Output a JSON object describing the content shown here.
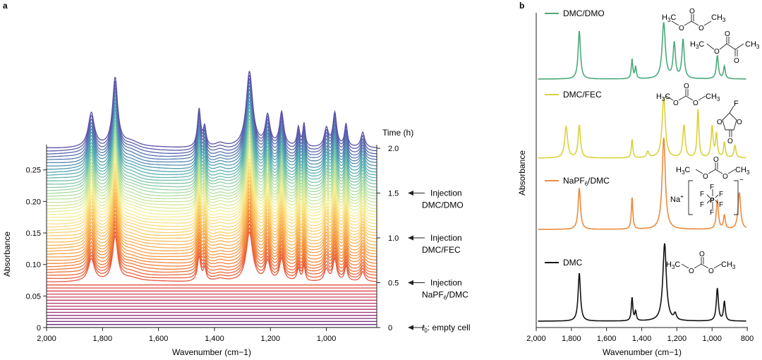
{
  "chart_data": [
    {
      "panel": "a",
      "type": "line",
      "title": "",
      "xlabel": "Wavenumber (cm−1)",
      "ylabel": "Absorbance",
      "xlim": [
        2000,
        820
      ],
      "ylim": [
        0,
        0.3
      ],
      "xticks": [
        2000,
        1800,
        1600,
        1400,
        1200,
        1000
      ],
      "xtick_labels": [
        "2,000",
        "1,800",
        "1,600",
        "1,400",
        "1,200",
        "1,000"
      ],
      "yticks": [
        0,
        0.05,
        0.1,
        0.15,
        0.2,
        0.25
      ],
      "ytick_labels": [
        "0",
        "0.05",
        "0.10",
        "0.15",
        "0.20",
        "0.25"
      ],
      "right_axis": {
        "title": "Time (h)",
        "range": [
          0,
          2.0
        ],
        "ticks": [
          0,
          0.5,
          1.0,
          1.5,
          2.0
        ],
        "tick_labels": [
          "0",
          "0.5",
          "1.0",
          "1.5",
          "2.0"
        ]
      },
      "series_count": 60,
      "time_range_h": [
        0,
        2.0
      ],
      "colormap": "spectral (purple at t0 → red → orange → yellow → green → blue-violet at 2.0 h)",
      "stages": [
        {
          "from_h": 0,
          "to_h": 0.5,
          "sample": "empty cell"
        },
        {
          "from_h": 0.5,
          "to_h": 1.0,
          "sample": "NaPF6/DMC"
        },
        {
          "from_h": 1.0,
          "to_h": 1.5,
          "sample": "DMC/FEC"
        },
        {
          "from_h": 1.5,
          "to_h": 2.0,
          "sample": "DMC/DMO"
        }
      ],
      "annotations": [
        {
          "time_h": 2.0,
          "line1": "",
          "line2": ""
        },
        {
          "time_h": 1.5,
          "line1": "Injection",
          "line2": "DMC/DMO"
        },
        {
          "time_h": 1.0,
          "line1": "Injection",
          "line2": "DMC/FEC"
        },
        {
          "time_h": 0.5,
          "line1": "Injection",
          "line2": "NaPF",
          "line2_sub": "6",
          "line2_tail": "/DMC"
        },
        {
          "time_h": 0,
          "line1": "",
          "line2": "t",
          "line2_sub": "0",
          "line2_tail": ": empty cell"
        }
      ],
      "peaks_cm1": [
        1840,
        1755,
        1455,
        1435,
        1275,
        1210,
        1160,
        1100,
        1080,
        1000,
        970,
        930,
        870
      ]
    },
    {
      "panel": "b",
      "type": "line",
      "xlabel": "Wavenumber (cm−1)",
      "ylabel": "Absorbance",
      "xlim": [
        2000,
        800
      ],
      "xticks": [
        2000,
        1800,
        1600,
        1400,
        1200,
        1000,
        800
      ],
      "xtick_labels": [
        "2,000",
        "1,800",
        "1,600",
        "1,400",
        "1,200",
        "1,000",
        "800"
      ],
      "series": [
        {
          "name": "DMC/DMO",
          "color": "#4aaa7a",
          "peaks": [
            [
              1755,
              0.62
            ],
            [
              1455,
              0.25
            ],
            [
              1435,
              0.15
            ],
            [
              1275,
              0.72
            ],
            [
              1215,
              0.45
            ],
            [
              1165,
              0.5
            ],
            [
              970,
              0.3
            ],
            [
              930,
              0.16
            ]
          ]
        },
        {
          "name": "DMC/FEC",
          "color": "#d9d23a",
          "peaks": [
            [
              1830,
              0.4
            ],
            [
              1755,
              0.42
            ],
            [
              1455,
              0.24
            ],
            [
              1365,
              0.08
            ],
            [
              1275,
              0.78
            ],
            [
              1160,
              0.42
            ],
            [
              1080,
              0.62
            ],
            [
              1000,
              0.4
            ],
            [
              975,
              0.3
            ],
            [
              930,
              0.2
            ],
            [
              870,
              0.16
            ]
          ]
        },
        {
          "name": "NaPF",
          "name_sub": "6",
          "name_tail": "/DMC",
          "color": "#ec8a3c",
          "peaks": [
            [
              1755,
              0.45
            ],
            [
              1455,
              0.35
            ],
            [
              1275,
              1.0
            ],
            [
              970,
              0.32
            ],
            [
              930,
              0.15
            ],
            [
              845,
              0.4
            ]
          ]
        },
        {
          "name": "DMC",
          "color": "#111111",
          "peaks": [
            [
              1755,
              0.62
            ],
            [
              1455,
              0.3
            ],
            [
              1435,
              0.12
            ],
            [
              1270,
              1.0
            ],
            [
              1210,
              0.08
            ],
            [
              970,
              0.42
            ],
            [
              930,
              0.25
            ]
          ]
        }
      ]
    }
  ],
  "panel_labels": {
    "a": "a",
    "b": "b"
  },
  "structures": {
    "h3c": "H",
    "h3c_sub": "3",
    "h3c_tail": "C",
    "ch3": "CH",
    "ch3_sub": "3",
    "o": "O",
    "f": "F",
    "na": "Na",
    "plus": "+",
    "minus": "−",
    "p": "P"
  },
  "colors": {
    "axis": "#222222",
    "dmc": "#111111",
    "napf6": "#ec8a3c",
    "fec": "#d9d23a",
    "dmo": "#4aaa7a"
  }
}
